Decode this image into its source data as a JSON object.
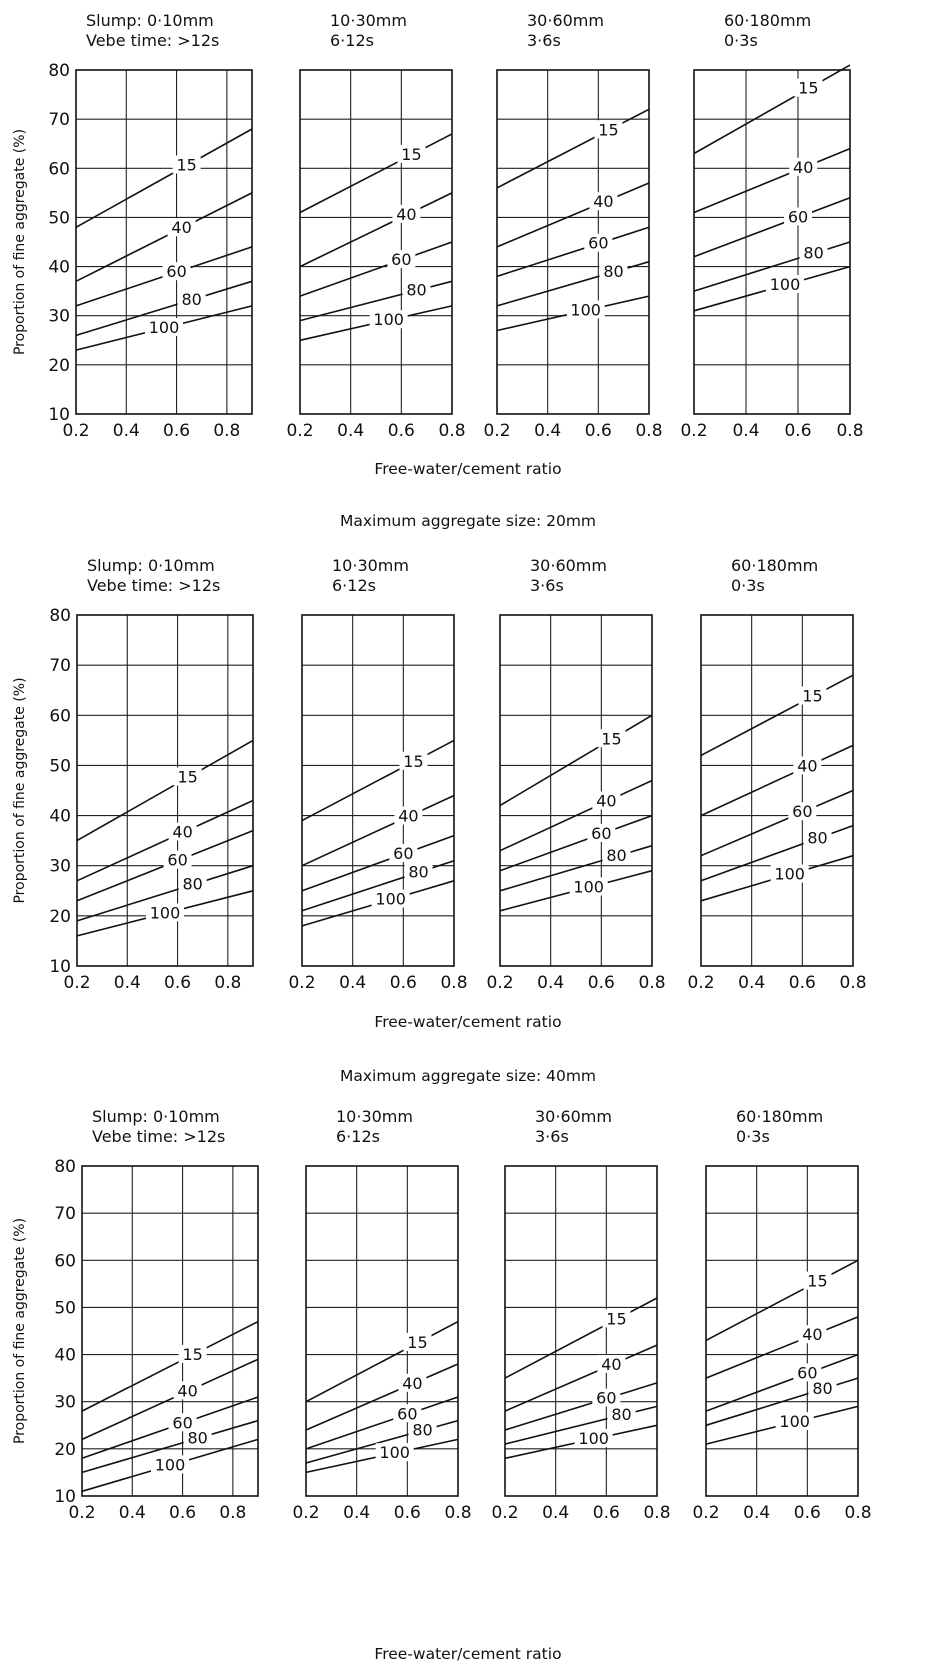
{
  "chart_data": {
    "type": "line",
    "figure": [
      {
        "section_title": "",
        "xlabel": "Free-water/cement ratio",
        "ylabel": "Proportion of fine aggregate (%)",
        "ylim": [
          10,
          80
        ],
        "xlim": [
          0.2,
          0.9
        ],
        "y_ticks": [
          "10",
          "20",
          "30",
          "40",
          "50",
          "60",
          "70",
          "80"
        ],
        "panels": [
          {
            "head1": "Slump: 0·10mm",
            "head2": "Vebe time: >12s",
            "xlim": [
              0.2,
              0.9
            ],
            "x_ticks": [
              "0.2",
              "0.4",
              "0.6",
              "0.8"
            ],
            "series": [
              {
                "name": "15",
                "x": [
                  0.2,
                  0.9
                ],
                "y": [
                  48,
                  68
                ]
              },
              {
                "name": "40",
                "x": [
                  0.2,
                  0.9
                ],
                "y": [
                  37,
                  55
                ]
              },
              {
                "name": "60",
                "x": [
                  0.2,
                  0.9
                ],
                "y": [
                  32,
                  44
                ]
              },
              {
                "name": "80",
                "x": [
                  0.2,
                  0.9
                ],
                "y": [
                  26,
                  37
                ]
              },
              {
                "name": "100",
                "x": [
                  0.2,
                  0.9
                ],
                "y": [
                  23,
                  32
                ]
              }
            ]
          },
          {
            "head1": "10·30mm",
            "head2": "6·12s",
            "xlim": [
              0.2,
              0.8
            ],
            "x_ticks": [
              "0.2",
              "0.4",
              "0.6",
              "0.8"
            ],
            "series": [
              {
                "name": "15",
                "x": [
                  0.2,
                  0.8
                ],
                "y": [
                  51,
                  67
                ]
              },
              {
                "name": "40",
                "x": [
                  0.2,
                  0.8
                ],
                "y": [
                  40,
                  55
                ]
              },
              {
                "name": "60",
                "x": [
                  0.2,
                  0.8
                ],
                "y": [
                  34,
                  45
                ]
              },
              {
                "name": "80",
                "x": [
                  0.2,
                  0.8
                ],
                "y": [
                  29,
                  37
                ]
              },
              {
                "name": "100",
                "x": [
                  0.2,
                  0.8
                ],
                "y": [
                  25,
                  32
                ]
              }
            ]
          },
          {
            "head1": "30·60mm",
            "head2": "3·6s",
            "xlim": [
              0.2,
              0.8
            ],
            "x_ticks": [
              "0.2",
              "0.4",
              "0.6",
              "0.8"
            ],
            "series": [
              {
                "name": "15",
                "x": [
                  0.2,
                  0.8
                ],
                "y": [
                  56,
                  72
                ]
              },
              {
                "name": "40",
                "x": [
                  0.2,
                  0.8
                ],
                "y": [
                  44,
                  57
                ]
              },
              {
                "name": "60",
                "x": [
                  0.2,
                  0.8
                ],
                "y": [
                  38,
                  48
                ]
              },
              {
                "name": "80",
                "x": [
                  0.2,
                  0.8
                ],
                "y": [
                  32,
                  41
                ]
              },
              {
                "name": "100",
                "x": [
                  0.2,
                  0.8
                ],
                "y": [
                  27,
                  34
                ]
              }
            ]
          },
          {
            "head1": "60·180mm",
            "head2": "0·3s",
            "xlim": [
              0.2,
              0.8
            ],
            "x_ticks": [
              "0.2",
              "0.4",
              "0.6",
              "0.8"
            ],
            "series": [
              {
                "name": "15",
                "x": [
                  0.2,
                  0.8
                ],
                "y": [
                  63,
                  81
                ]
              },
              {
                "name": "40",
                "x": [
                  0.2,
                  0.8
                ],
                "y": [
                  51,
                  64
                ]
              },
              {
                "name": "60",
                "x": [
                  0.2,
                  0.8
                ],
                "y": [
                  42,
                  54
                ]
              },
              {
                "name": "80",
                "x": [
                  0.2,
                  0.8
                ],
                "y": [
                  35,
                  45
                ]
              },
              {
                "name": "100",
                "x": [
                  0.2,
                  0.8
                ],
                "y": [
                  31,
                  40
                ]
              }
            ]
          }
        ]
      },
      {
        "section_title": "Maximum aggregate size: 20mm",
        "xlabel": "Free-water/cement ratio",
        "ylabel": "Proportion of fine aggregate (%)",
        "ylim": [
          10,
          80
        ],
        "xlim": [
          0.2,
          0.9
        ],
        "y_ticks": [
          "10",
          "20",
          "30",
          "40",
          "50",
          "60",
          "70",
          "80"
        ],
        "panels": [
          {
            "head1": "Slump: 0·10mm",
            "head2": "Vebe time: >12s",
            "xlim": [
              0.2,
              0.9
            ],
            "x_ticks": [
              "0.2",
              "0.4",
              "0.6",
              "0.8"
            ],
            "series": [
              {
                "name": "15",
                "x": [
                  0.2,
                  0.9
                ],
                "y": [
                  35,
                  55
                ]
              },
              {
                "name": "40",
                "x": [
                  0.2,
                  0.9
                ],
                "y": [
                  27,
                  43
                ]
              },
              {
                "name": "60",
                "x": [
                  0.2,
                  0.9
                ],
                "y": [
                  23,
                  37
                ]
              },
              {
                "name": "80",
                "x": [
                  0.2,
                  0.9
                ],
                "y": [
                  19,
                  30
                ]
              },
              {
                "name": "100",
                "x": [
                  0.2,
                  0.9
                ],
                "y": [
                  16,
                  25
                ]
              }
            ]
          },
          {
            "head1": "10·30mm",
            "head2": "6·12s",
            "xlim": [
              0.2,
              0.8
            ],
            "x_ticks": [
              "0.2",
              "0.4",
              "0.6",
              "0.8"
            ],
            "series": [
              {
                "name": "15",
                "x": [
                  0.2,
                  0.8
                ],
                "y": [
                  39,
                  55
                ]
              },
              {
                "name": "40",
                "x": [
                  0.2,
                  0.8
                ],
                "y": [
                  30,
                  44
                ]
              },
              {
                "name": "60",
                "x": [
                  0.2,
                  0.8
                ],
                "y": [
                  25,
                  36
                ]
              },
              {
                "name": "80",
                "x": [
                  0.2,
                  0.8
                ],
                "y": [
                  21,
                  31
                ]
              },
              {
                "name": "100",
                "x": [
                  0.2,
                  0.8
                ],
                "y": [
                  18,
                  27
                ]
              }
            ]
          },
          {
            "head1": "30·60mm",
            "head2": "3·6s",
            "xlim": [
              0.2,
              0.8
            ],
            "x_ticks": [
              "0.2",
              "0.4",
              "0.6",
              "0.8"
            ],
            "series": [
              {
                "name": "15",
                "x": [
                  0.2,
                  0.8
                ],
                "y": [
                  42,
                  60
                ]
              },
              {
                "name": "40",
                "x": [
                  0.2,
                  0.8
                ],
                "y": [
                  33,
                  47
                ]
              },
              {
                "name": "60",
                "x": [
                  0.2,
                  0.8
                ],
                "y": [
                  29,
                  40
                ]
              },
              {
                "name": "80",
                "x": [
                  0.2,
                  0.8
                ],
                "y": [
                  25,
                  34
                ]
              },
              {
                "name": "100",
                "x": [
                  0.2,
                  0.8
                ],
                "y": [
                  21,
                  29
                ]
              }
            ]
          },
          {
            "head1": "60·180mm",
            "head2": "0·3s",
            "xlim": [
              0.2,
              0.8
            ],
            "x_ticks": [
              "0.2",
              "0.4",
              "0.6",
              "0.8"
            ],
            "series": [
              {
                "name": "15",
                "x": [
                  0.2,
                  0.8
                ],
                "y": [
                  52,
                  68
                ]
              },
              {
                "name": "40",
                "x": [
                  0.2,
                  0.8
                ],
                "y": [
                  40,
                  54
                ]
              },
              {
                "name": "60",
                "x": [
                  0.2,
                  0.8
                ],
                "y": [
                  32,
                  45
                ]
              },
              {
                "name": "80",
                "x": [
                  0.2,
                  0.8
                ],
                "y": [
                  27,
                  38
                ]
              },
              {
                "name": "100",
                "x": [
                  0.2,
                  0.8
                ],
                "y": [
                  23,
                  32
                ]
              }
            ]
          }
        ]
      },
      {
        "section_title": "Maximum aggregate size: 40mm",
        "xlabel": "Free-water/cement ratio",
        "ylabel": "Proportion of fine aggregate (%)",
        "ylim": [
          10,
          80
        ],
        "xlim": [
          0.2,
          0.9
        ],
        "y_ticks": [
          "10",
          "20",
          "30",
          "40",
          "50",
          "60",
          "70",
          "80"
        ],
        "panels": [
          {
            "head1": "Slump: 0·10mm",
            "head2": "Vebe time: >12s",
            "xlim": [
              0.2,
              0.9
            ],
            "x_ticks": [
              "0.2",
              "0.4",
              "0.6",
              "0.8"
            ],
            "series": [
              {
                "name": "15",
                "x": [
                  0.2,
                  0.9
                ],
                "y": [
                  28,
                  47
                ]
              },
              {
                "name": "40",
                "x": [
                  0.2,
                  0.9
                ],
                "y": [
                  22,
                  39
                ]
              },
              {
                "name": "60",
                "x": [
                  0.2,
                  0.9
                ],
                "y": [
                  18,
                  31
                ]
              },
              {
                "name": "80",
                "x": [
                  0.2,
                  0.9
                ],
                "y": [
                  15,
                  26
                ]
              },
              {
                "name": "100",
                "x": [
                  0.2,
                  0.9
                ],
                "y": [
                  11,
                  22
                ]
              }
            ]
          },
          {
            "head1": "10·30mm",
            "head2": "6·12s",
            "xlim": [
              0.2,
              0.8
            ],
            "x_ticks": [
              "0.2",
              "0.4",
              "0.6",
              "0.8"
            ],
            "series": [
              {
                "name": "15",
                "x": [
                  0.2,
                  0.8
                ],
                "y": [
                  30,
                  47
                ]
              },
              {
                "name": "40",
                "x": [
                  0.2,
                  0.8
                ],
                "y": [
                  24,
                  38
                ]
              },
              {
                "name": "60",
                "x": [
                  0.2,
                  0.8
                ],
                "y": [
                  20,
                  31
                ]
              },
              {
                "name": "80",
                "x": [
                  0.2,
                  0.8
                ],
                "y": [
                  17,
                  26
                ]
              },
              {
                "name": "100",
                "x": [
                  0.2,
                  0.8
                ],
                "y": [
                  15,
                  22
                ]
              }
            ]
          },
          {
            "head1": "30·60mm",
            "head2": "3·6s",
            "xlim": [
              0.2,
              0.8
            ],
            "x_ticks": [
              "0.2",
              "0.4",
              "0.6",
              "0.8"
            ],
            "series": [
              {
                "name": "15",
                "x": [
                  0.2,
                  0.8
                ],
                "y": [
                  35,
                  52
                ]
              },
              {
                "name": "40",
                "x": [
                  0.2,
                  0.8
                ],
                "y": [
                  28,
                  42
                ]
              },
              {
                "name": "60",
                "x": [
                  0.2,
                  0.8
                ],
                "y": [
                  24,
                  34
                ]
              },
              {
                "name": "80",
                "x": [
                  0.2,
                  0.8
                ],
                "y": [
                  21,
                  29
                ]
              },
              {
                "name": "100",
                "x": [
                  0.2,
                  0.8
                ],
                "y": [
                  18,
                  25
                ]
              }
            ]
          },
          {
            "head1": "60·180mm",
            "head2": "0·3s",
            "xlim": [
              0.2,
              0.8
            ],
            "x_ticks": [
              "0.2",
              "0.4",
              "0.6",
              "0.8"
            ],
            "series": [
              {
                "name": "15",
                "x": [
                  0.2,
                  0.8
                ],
                "y": [
                  43,
                  60
                ]
              },
              {
                "name": "40",
                "x": [
                  0.2,
                  0.8
                ],
                "y": [
                  35,
                  48
                ]
              },
              {
                "name": "60",
                "x": [
                  0.2,
                  0.8
                ],
                "y": [
                  28,
                  40
                ]
              },
              {
                "name": "80",
                "x": [
                  0.2,
                  0.8
                ],
                "y": [
                  25,
                  35
                ]
              },
              {
                "name": "100",
                "x": [
                  0.2,
                  0.8
                ],
                "y": [
                  21,
                  29
                ]
              }
            ]
          }
        ]
      }
    ]
  }
}
